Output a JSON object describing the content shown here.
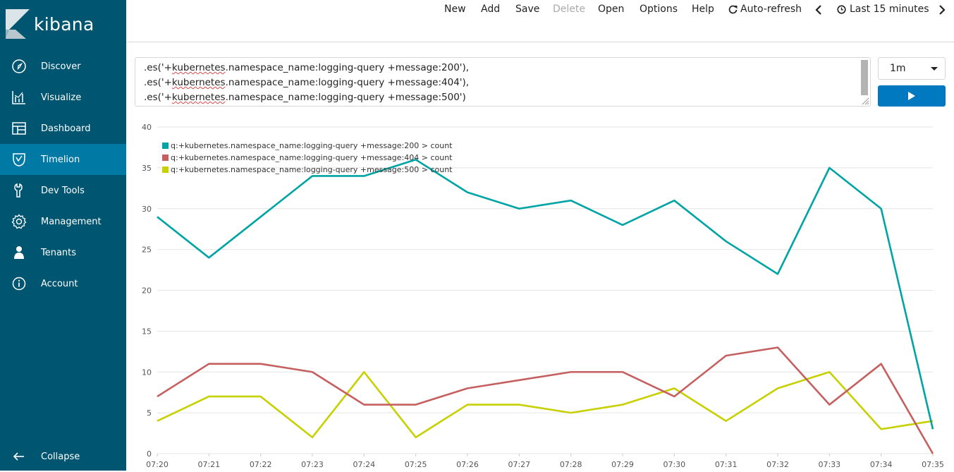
{
  "app": {
    "name": "kibana"
  },
  "sidebar": {
    "items": [
      {
        "label": "Discover",
        "icon": "compass-icon"
      },
      {
        "label": "Visualize",
        "icon": "bar-chart-icon"
      },
      {
        "label": "Dashboard",
        "icon": "dashboard-icon"
      },
      {
        "label": "Timelion",
        "icon": "timelion-icon",
        "active": true
      },
      {
        "label": "Dev Tools",
        "icon": "wrench-icon"
      },
      {
        "label": "Management",
        "icon": "gear-icon"
      },
      {
        "label": "Tenants",
        "icon": "user-icon"
      },
      {
        "label": "Account",
        "icon": "info-icon"
      }
    ],
    "collapse_label": "Collapse"
  },
  "topbar": {
    "new": "New",
    "add": "Add",
    "save": "Save",
    "delete": "Delete",
    "open": "Open",
    "options": "Options",
    "help": "Help",
    "auto_refresh": "Auto-refresh",
    "time_range": "Last 15 minutes"
  },
  "expression": {
    "lines": [
      {
        "pre": ".es('+",
        "word": "kubernetes",
        "post": ".namespace_name:logging-query +message:200'),"
      },
      {
        "pre": ".es('+",
        "word": "kubernetes",
        "post": ".namespace_name:logging-query +message:404'),"
      },
      {
        "pre": ".es('+",
        "word": "kubernetes",
        "post": ".namespace_name:logging-query +message:500')"
      }
    ]
  },
  "interval": {
    "value": "1m"
  },
  "colors": {
    "sidebar_bg": "#005571",
    "sidebar_active": "#0079a5",
    "run_button": "#0079c1",
    "series_200": "#01a4a4",
    "series_404": "#c66060",
    "series_500": "#c7d000"
  },
  "chart_data": {
    "type": "line",
    "x": [
      "07:20",
      "07:21",
      "07:22",
      "07:23",
      "07:24",
      "07:25",
      "07:26",
      "07:27",
      "07:28",
      "07:29",
      "07:30",
      "07:31",
      "07:32",
      "07:33",
      "07:34",
      "07:35"
    ],
    "ylim": [
      0,
      40
    ],
    "yticks": [
      0,
      5,
      10,
      15,
      20,
      25,
      30,
      35,
      40
    ],
    "grid": true,
    "legend_position": "top-left",
    "series": [
      {
        "name": "q:+kubernetes.namespace_name:logging-query +message:200 > count",
        "color": "#01a4a4",
        "values": [
          29,
          24,
          29,
          34,
          34,
          36,
          32,
          30,
          31,
          28,
          31,
          26,
          22,
          35,
          30,
          3
        ]
      },
      {
        "name": "q:+kubernetes.namespace_name:logging-query +message:404 > count",
        "color": "#c66060",
        "values": [
          7,
          11,
          11,
          10,
          6,
          6,
          8,
          9,
          10,
          10,
          7,
          12,
          13,
          6,
          11,
          0
        ]
      },
      {
        "name": "q:+kubernetes.namespace_name:logging-query +message:500 > count",
        "color": "#c7d000",
        "values": [
          4,
          7,
          7,
          2,
          10,
          2,
          6,
          6,
          5,
          6,
          8,
          4,
          8,
          10,
          3,
          4
        ]
      }
    ]
  }
}
